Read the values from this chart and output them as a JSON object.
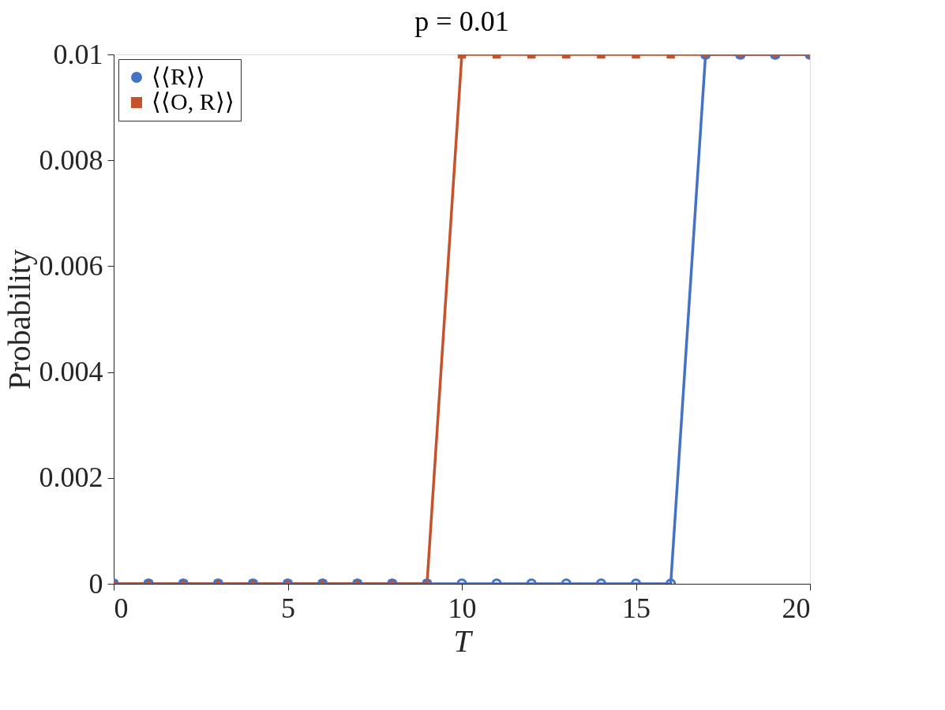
{
  "chart_data": {
    "type": "line",
    "title": "p = 0.01",
    "xlabel": "T",
    "ylabel": "Probability",
    "x": [
      0,
      1,
      2,
      3,
      4,
      5,
      6,
      7,
      8,
      9,
      10,
      11,
      12,
      13,
      14,
      15,
      16,
      17,
      18,
      19,
      20
    ],
    "series": [
      {
        "name": "⟨⟨R⟩⟩",
        "color": "#4472c4",
        "marker": "circle",
        "values": [
          0,
          0,
          0,
          0,
          0,
          0,
          0,
          0,
          0,
          0,
          0,
          0,
          0,
          0,
          0,
          0,
          0,
          0.01,
          0.01,
          0.01,
          0.01
        ]
      },
      {
        "name": "⟨⟨O, R⟩⟩",
        "color": "#c5522a",
        "marker": "square",
        "values": [
          0,
          0,
          0,
          0,
          0,
          0,
          0,
          0,
          0,
          0,
          0.01,
          0.01,
          0.01,
          0.01,
          0.01,
          0.01,
          0.01,
          0.01,
          0.01,
          0.01,
          0.01
        ]
      }
    ],
    "xlim": [
      0,
      20
    ],
    "xticks": [
      0,
      5,
      10,
      15,
      20
    ],
    "ylim": [
      0,
      0.01
    ],
    "yticks": [
      0,
      0.002,
      0.004,
      0.006,
      0.008,
      0.01
    ],
    "grid": false,
    "legend": "top left",
    "line_style": "solid"
  }
}
